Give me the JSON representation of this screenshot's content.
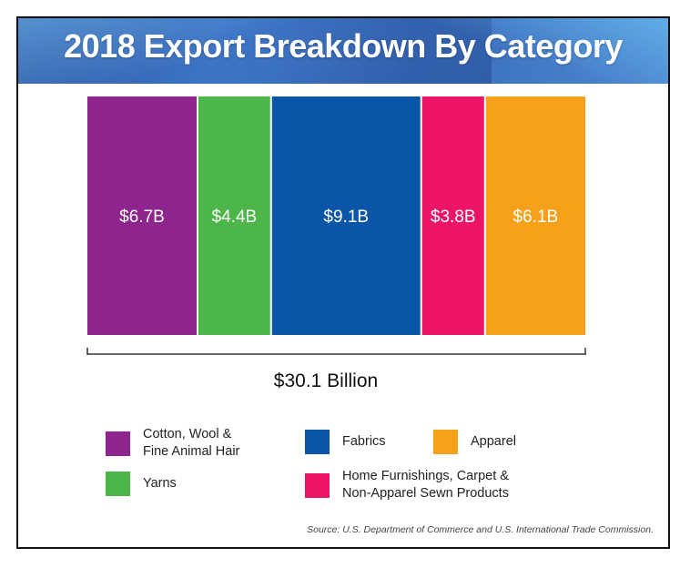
{
  "title": "2018 Export Breakdown By Category",
  "total_label": "$30.1 Billion",
  "source": "Source: U.S. Department of Commerce and U.S. International Trade Commission.",
  "legend": [
    {
      "label": "Cotton, Wool &\nFine Animal Hair",
      "color": "#8e248e"
    },
    {
      "label": "Yarns",
      "color": "#4cb648"
    },
    {
      "label": "Fabrics",
      "color": "#0a55a8"
    },
    {
      "label": "Home Furnishings, Carpet &\nNon-Apparel Sewn Products",
      "color": "#ec1467"
    },
    {
      "label": "Apparel",
      "color": "#f7a11b"
    }
  ],
  "chart_data": {
    "type": "bar",
    "orientation": "stacked-horizontal-segments",
    "categories": [
      "Cotton, Wool & Fine Animal Hair",
      "Yarns",
      "Fabrics",
      "Home Furnishings, Carpet & Non-Apparel Sewn Products",
      "Apparel"
    ],
    "values": [
      6.7,
      4.4,
      9.1,
      3.8,
      6.1
    ],
    "data_labels": [
      "$6.7B",
      "$4.4B",
      "$9.1B",
      "$3.8B",
      "$6.1B"
    ],
    "colors": [
      "#8e248e",
      "#4cb648",
      "#0a55a8",
      "#ec1467",
      "#f7a11b"
    ],
    "total": 30.1,
    "title": "2018 Export Breakdown By Category",
    "legend_position": "bottom",
    "grid": false
  }
}
